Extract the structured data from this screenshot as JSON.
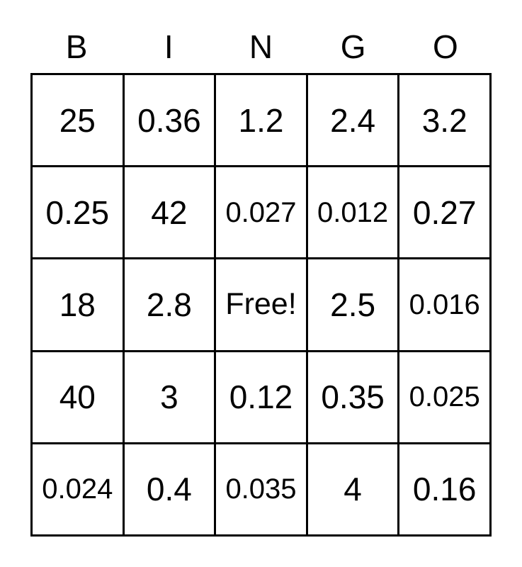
{
  "card": {
    "title": "BINGO",
    "header_letters": [
      "B",
      "I",
      "N",
      "G",
      "O"
    ],
    "rows": [
      [
        "25",
        "0.36",
        "1.2",
        "2.4",
        "3.2"
      ],
      [
        "0.25",
        "42",
        "0.027",
        "0.012",
        "0.27"
      ],
      [
        "18",
        "2.8",
        "Free!",
        "2.5",
        "0.016"
      ],
      [
        "40",
        "3",
        "0.12",
        "0.35",
        "0.025"
      ],
      [
        "0.024",
        "0.4",
        "0.035",
        "4",
        "0.16"
      ]
    ],
    "free_cell": {
      "row_index": 2,
      "col_index": 2,
      "label": "Free!"
    },
    "colors": {
      "background": "#ffffff",
      "grid_lines": "#000000",
      "text": "#000000"
    }
  }
}
